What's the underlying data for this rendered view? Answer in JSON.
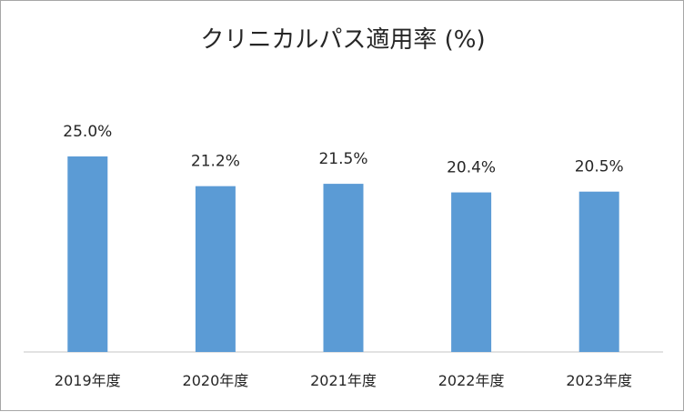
{
  "chart_data": {
    "type": "bar",
    "title": "クリニカルパス適用率 (%)",
    "categories": [
      "2019年度",
      "2020年度",
      "2021年度",
      "2022年度",
      "2023年度"
    ],
    "values": [
      25.0,
      21.2,
      21.5,
      20.4,
      20.5
    ],
    "data_labels": [
      "25.0%",
      "21.2%",
      "21.5%",
      "20.4%",
      "20.5%"
    ],
    "xlabel": "",
    "ylabel": "",
    "ylim": [
      0,
      25
    ],
    "grid": false,
    "legend": "none",
    "bar_color": "#5b9bd5"
  }
}
